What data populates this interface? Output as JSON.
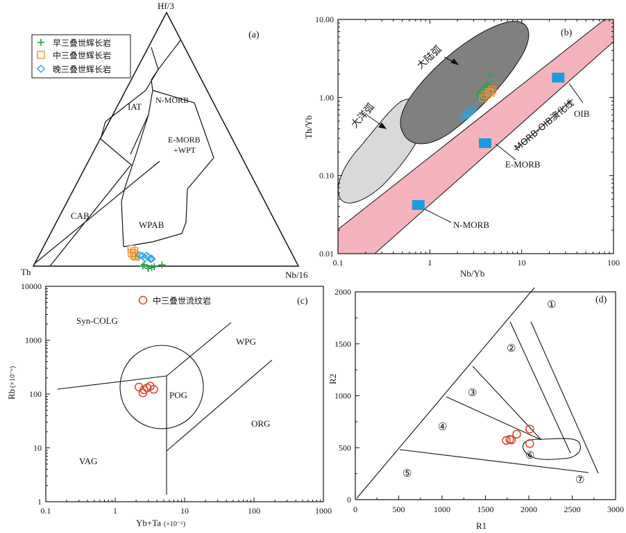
{
  "chart_data": [
    {
      "panel": "(a)",
      "type": "scatter",
      "axis_labels": {
        "top": "Hf/3",
        "left": "Th",
        "right": "Nb/16"
      },
      "fields": [
        "IAT",
        "N-MORB",
        "E-MORB",
        "+WPT",
        "CAB",
        "WPAB"
      ],
      "legend": [
        "早三叠世辉长岩",
        "中三叠世辉长岩",
        "晚三叠世辉长岩"
      ],
      "series": [
        {
          "name": "早三叠世辉长岩",
          "marker": "plus",
          "color": "#2aa24a",
          "points": [
            [
              0.596,
              0.367
            ],
            [
              0.587,
              0.413
            ],
            [
              0.579,
              0.415
            ],
            [
              0.57,
              0.439
            ],
            [
              0.571,
              0.437
            ],
            [
              0.556,
              0.45
            ],
            [
              0.545,
              0.457
            ],
            [
              0.512,
              0.483
            ]
          ]
        },
        {
          "name": "中三叠世辉长岩",
          "marker": "square",
          "color": "#f0902a",
          "points": [
            [
              0.596,
              0.354
            ],
            [
              0.603,
              0.345
            ],
            [
              0.596,
              0.336
            ],
            [
              0.589,
              0.352
            ],
            [
              0.594,
              0.368
            ],
            [
              0.598,
              0.36
            ]
          ]
        },
        {
          "name": "晚三叠世辉长岩",
          "marker": "diamond",
          "color": "#29a3e0",
          "points": [
            [
              0.577,
              0.38
            ],
            [
              0.568,
              0.392
            ],
            [
              0.563,
              0.406
            ],
            [
              0.552,
              0.407
            ],
            [
              0.548,
              0.417
            ],
            [
              0.544,
              0.427
            ],
            [
              0.539,
              0.432
            ]
          ]
        }
      ]
    },
    {
      "panel": "(b)",
      "type": "scatter",
      "xlabel": "Nb/Yb",
      "ylabel": "Th/Yb",
      "xscale": "log",
      "yscale": "log",
      "xlim": [
        0.1,
        100
      ],
      "ylim": [
        0.01,
        10
      ],
      "x_ticks": [
        "0.1",
        "1",
        "10",
        "100"
      ],
      "y_ticks": [
        "0.01",
        "0.10",
        "1.00",
        "10.00"
      ],
      "labels": [
        "大陆弧",
        "大洋弧",
        "MORB-OIB演化线",
        "OIB",
        "E-MORB",
        "N-MORB"
      ],
      "reference_points": [
        {
          "label": "N-MORB",
          "x": 0.75,
          "y": 0.042
        },
        {
          "label": "E-MORB",
          "x": 4.0,
          "y": 0.26
        },
        {
          "label": "OIB",
          "x": 25,
          "y": 1.8
        }
      ],
      "series": [
        {
          "name": "早三叠世辉长岩",
          "marker": "plus",
          "color": "#2aa24a",
          "points": [
            [
              4.5,
              1.95
            ],
            [
              4.3,
              1.5
            ],
            [
              4.2,
              1.4
            ],
            [
              3.9,
              1.35
            ],
            [
              3.6,
              1.2
            ],
            [
              3.4,
              1.1
            ],
            [
              3.5,
              0.95
            ]
          ]
        },
        {
          "name": "中三叠世辉长岩",
          "marker": "square",
          "color": "#f0902a",
          "points": [
            [
              4.8,
              1.25
            ],
            [
              4.4,
              1.18
            ],
            [
              4.0,
              1.08
            ],
            [
              3.8,
              0.98
            ],
            [
              4.6,
              1.15
            ]
          ]
        },
        {
          "name": "晚三叠世辉长岩",
          "marker": "diamond",
          "color": "#29a3e0",
          "points": [
            [
              3.0,
              0.72
            ],
            [
              2.9,
              0.68
            ],
            [
              2.75,
              0.64
            ],
            [
              2.6,
              0.6
            ],
            [
              2.45,
              0.58
            ],
            [
              2.3,
              0.55
            ],
            [
              2.55,
              0.66
            ]
          ]
        }
      ]
    },
    {
      "panel": "(c)",
      "type": "scatter",
      "xlabel": "Yb+Ta",
      "xlabel_unit": "(×10⁻⁶)",
      "ylabel": "Rb",
      "ylabel_unit": "(×10⁻⁶)",
      "xscale": "log",
      "yscale": "log",
      "xlim": [
        0.1,
        1000
      ],
      "ylim": [
        1,
        10000
      ],
      "x_ticks": [
        "0.1",
        "1",
        "10",
        "100",
        "1000"
      ],
      "y_ticks": [
        "1",
        "10",
        "100",
        "1000",
        "10000"
      ],
      "fields": [
        "Syn-COLG",
        "WPG",
        "POG",
        "VAG",
        "ORG"
      ],
      "series": [
        {
          "name": "中三叠世流纹岩",
          "marker": "circle",
          "color": "#e0402a",
          "points": [
            [
              2.2,
              135
            ],
            [
              2.6,
              120
            ],
            [
              2.9,
              130
            ],
            [
              3.2,
              140
            ],
            [
              3.6,
              122
            ],
            [
              2.5,
              105
            ]
          ]
        }
      ]
    },
    {
      "panel": "(d)",
      "type": "scatter",
      "xlabel": "R1",
      "ylabel": "R2",
      "xlim": [
        0,
        3000
      ],
      "ylim": [
        0,
        2000
      ],
      "x_ticks": [
        "0",
        "500",
        "1000",
        "1500",
        "2000",
        "2500",
        "3000"
      ],
      "y_ticks": [
        "0",
        "500",
        "1000",
        "1500",
        "2000"
      ],
      "fields": [
        "①",
        "②",
        "③",
        "④",
        "⑤",
        "⑥",
        "⑦"
      ],
      "series": [
        {
          "name": "中三叠世流纹岩",
          "marker": "circle",
          "color": "#e0402a",
          "points": [
            [
              1740,
              570
            ],
            [
              1800,
              575
            ],
            [
              1860,
              630
            ],
            [
              2010,
              680
            ],
            [
              2010,
              540
            ],
            [
              1780,
              580
            ]
          ]
        }
      ]
    }
  ]
}
